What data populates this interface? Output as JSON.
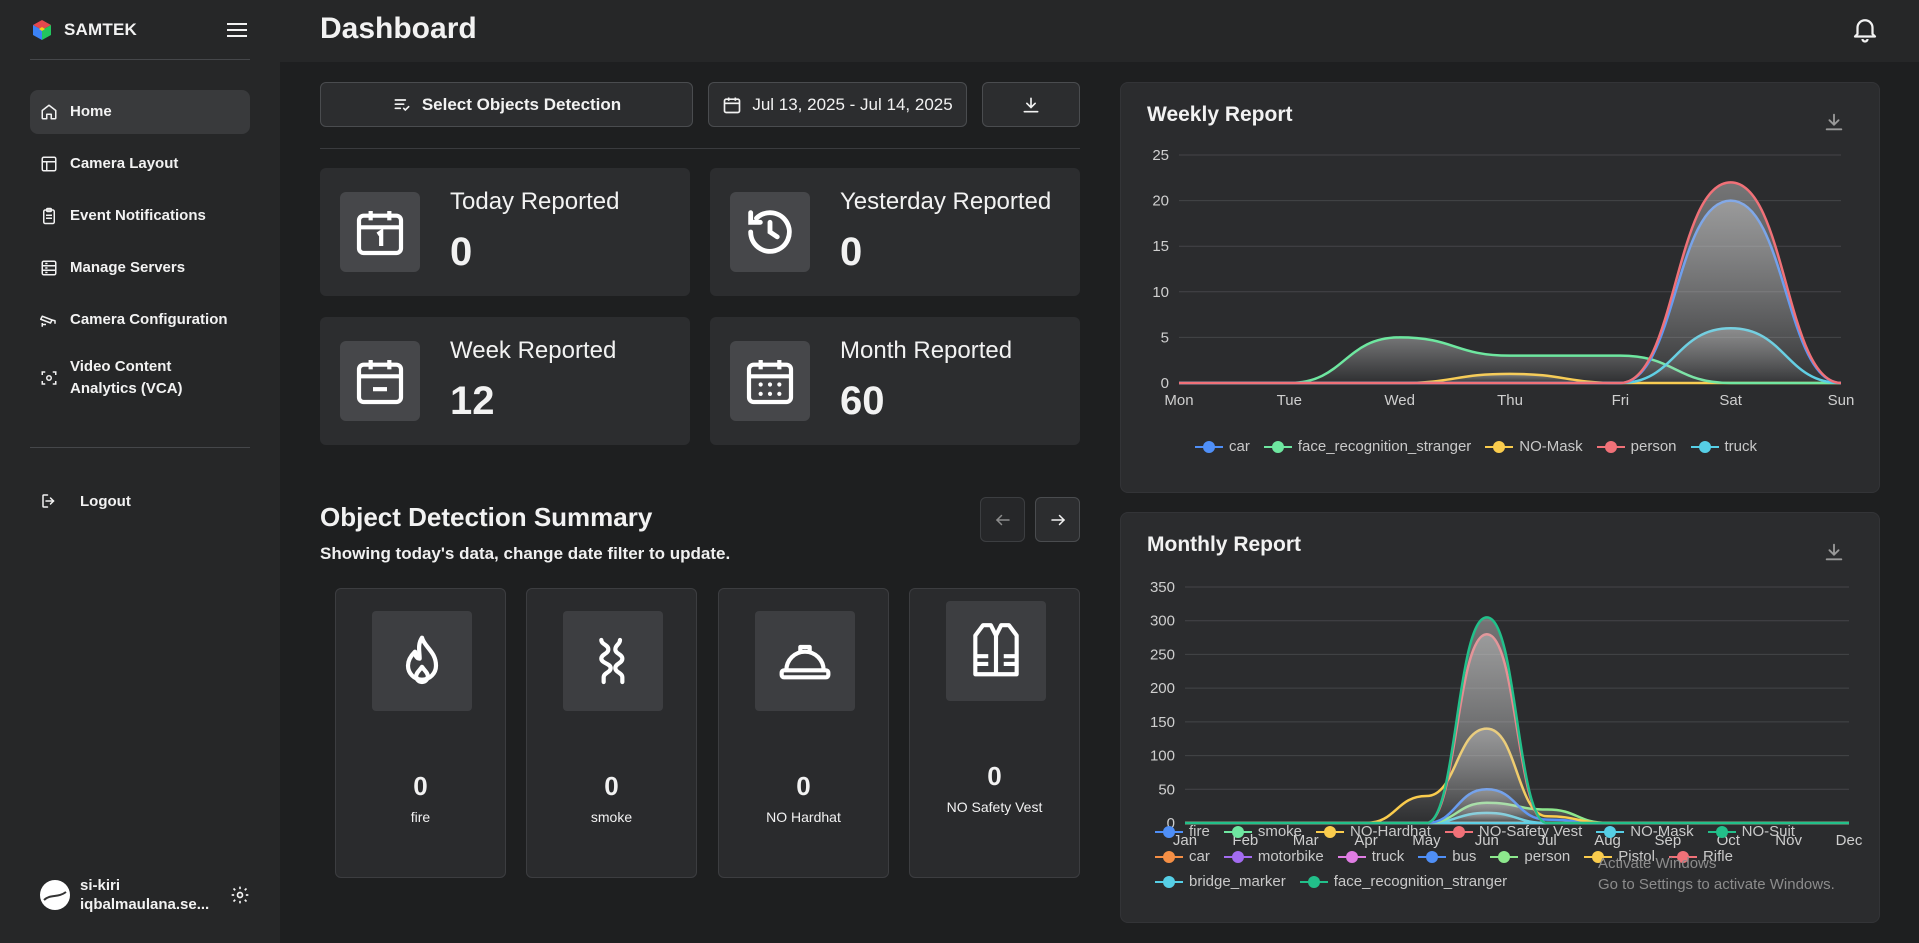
{
  "brand": {
    "name": "SAMTEK"
  },
  "sidebar": {
    "items": [
      {
        "label": "Home",
        "icon": "home-icon",
        "active": true
      },
      {
        "label": "Camera Layout",
        "icon": "layout-icon"
      },
      {
        "label": "Event Notifications",
        "icon": "clipboard-icon"
      },
      {
        "label": "Manage Servers",
        "icon": "server-icon"
      },
      {
        "label": "Camera Configuration",
        "icon": "cctv-icon"
      },
      {
        "label": "Video Content Analytics (VCA)",
        "icon": "scan-icon"
      }
    ],
    "logout": "Logout"
  },
  "user": {
    "name": "si-kiri",
    "email": "iqbalmaulana.se..."
  },
  "header": {
    "title": "Dashboard"
  },
  "toolbar": {
    "select_label": "Select Objects Detection",
    "date_range": "Jul 13, 2025 - Jul 14, 2025"
  },
  "stats": [
    {
      "label": "Today Reported",
      "value": "0",
      "icon": "calendar-one-icon"
    },
    {
      "label": "Yesterday Reported",
      "value": "0",
      "icon": "history-icon"
    },
    {
      "label": "Week Reported",
      "value": "12",
      "icon": "calendar-minus-icon"
    },
    {
      "label": "Month Reported",
      "value": "60",
      "icon": "calendar-grid-icon"
    }
  ],
  "summary": {
    "title": "Object Detection Summary",
    "subtitle": "Showing today's data, change date filter to update.",
    "cards": [
      {
        "value": "0",
        "label": "fire",
        "icon": "flame-icon"
      },
      {
        "value": "0",
        "label": "smoke",
        "icon": "smoke-icon"
      },
      {
        "value": "0",
        "label": "NO Hardhat",
        "icon": "hardhat-icon"
      },
      {
        "value": "0",
        "label": "NO Safety Vest",
        "icon": "vest-icon"
      }
    ]
  },
  "weekly": {
    "title": "Weekly Report"
  },
  "monthly": {
    "title": "Monthly Report"
  },
  "watermark": {
    "line1": "Activate Windows",
    "line2": "Go to Settings to activate Windows."
  },
  "chart_data": [
    {
      "type": "area",
      "title": "Weekly Report",
      "categories": [
        "Mon",
        "Tue",
        "Wed",
        "Thu",
        "Fri",
        "Sat",
        "Sun"
      ],
      "ylim": [
        0,
        25
      ],
      "yticks": [
        0,
        5,
        10,
        15,
        20,
        25
      ],
      "grid": true,
      "legend": "bottom",
      "series": [
        {
          "name": "car",
          "color": "#4f8ff7",
          "values": [
            0,
            0,
            0,
            0,
            0,
            20,
            0
          ]
        },
        {
          "name": "face_recognition_stranger",
          "color": "#6ee7a0",
          "values": [
            0,
            0,
            5,
            3,
            3,
            0,
            0
          ]
        },
        {
          "name": "NO-Mask",
          "color": "#facc4d",
          "values": [
            0,
            0,
            0,
            1,
            0,
            0,
            0
          ]
        },
        {
          "name": "person",
          "color": "#f07178",
          "values": [
            0,
            0,
            0,
            0,
            0,
            22,
            0
          ]
        },
        {
          "name": "truck",
          "color": "#56cfe6",
          "values": [
            0,
            0,
            0,
            0,
            0,
            6,
            0
          ]
        }
      ]
    },
    {
      "type": "area",
      "title": "Monthly Report",
      "categories": [
        "Jan",
        "Feb",
        "Mar",
        "Apr",
        "May",
        "Jun",
        "Jul",
        "Aug",
        "Sep",
        "Oct",
        "Nov",
        "Dec"
      ],
      "ylim": [
        0,
        350
      ],
      "yticks": [
        0,
        50,
        100,
        150,
        200,
        250,
        300,
        350
      ],
      "grid": true,
      "legend": "bottom",
      "series": [
        {
          "name": "fire",
          "color": "#4f8ff7",
          "values": [
            0,
            0,
            0,
            0,
            0,
            0,
            0,
            0,
            0,
            0,
            0,
            0
          ]
        },
        {
          "name": "smoke",
          "color": "#6ee7a0",
          "values": [
            0,
            0,
            0,
            0,
            0,
            0,
            0,
            0,
            0,
            0,
            0,
            0
          ]
        },
        {
          "name": "NO-Hardhat",
          "color": "#facc4d",
          "values": [
            0,
            0,
            0,
            0,
            40,
            140,
            10,
            0,
            0,
            0,
            0,
            0
          ]
        },
        {
          "name": "NO-Safety Vest",
          "color": "#f07178",
          "values": [
            0,
            0,
            0,
            0,
            0,
            0,
            0,
            0,
            0,
            0,
            0,
            0
          ]
        },
        {
          "name": "NO-Mask",
          "color": "#56cfe6",
          "values": [
            0,
            0,
            0,
            0,
            0,
            15,
            0,
            0,
            0,
            0,
            0,
            0
          ]
        },
        {
          "name": "NO-Suit",
          "color": "#22c08a",
          "values": [
            0,
            0,
            0,
            0,
            0,
            0,
            0,
            0,
            0,
            0,
            0,
            0
          ]
        },
        {
          "name": "car",
          "color": "#f58f45",
          "values": [
            0,
            0,
            0,
            0,
            0,
            0,
            0,
            0,
            0,
            0,
            0,
            0
          ]
        },
        {
          "name": "motorbike",
          "color": "#a36cf0",
          "values": [
            0,
            0,
            0,
            0,
            0,
            0,
            0,
            0,
            0,
            0,
            0,
            0
          ]
        },
        {
          "name": "truck",
          "color": "#e07de3",
          "values": [
            0,
            0,
            0,
            0,
            0,
            0,
            0,
            0,
            0,
            0,
            0,
            0
          ]
        },
        {
          "name": "bus",
          "color": "#4f8ff7",
          "values": [
            0,
            0,
            0,
            0,
            0,
            50,
            5,
            0,
            0,
            0,
            0,
            0
          ]
        },
        {
          "name": "person",
          "color": "#8de88d",
          "values": [
            0,
            0,
            0,
            0,
            0,
            30,
            20,
            0,
            0,
            0,
            0,
            0
          ]
        },
        {
          "name": "Pistol",
          "color": "#facc4d",
          "values": [
            0,
            0,
            0,
            0,
            0,
            0,
            0,
            0,
            0,
            0,
            0,
            0
          ]
        },
        {
          "name": "Rifle",
          "color": "#f07178",
          "values": [
            0,
            0,
            0,
            0,
            0,
            280,
            0,
            0,
            0,
            0,
            0,
            0
          ]
        },
        {
          "name": "bridge_marker",
          "color": "#56cfe6",
          "values": [
            0,
            0,
            0,
            0,
            0,
            0,
            0,
            0,
            0,
            0,
            0,
            0
          ]
        },
        {
          "name": "face_recognition_stranger",
          "color": "#22c08a",
          "values": [
            0,
            0,
            0,
            0,
            0,
            305,
            0,
            0,
            0,
            0,
            0,
            0
          ]
        }
      ]
    }
  ]
}
